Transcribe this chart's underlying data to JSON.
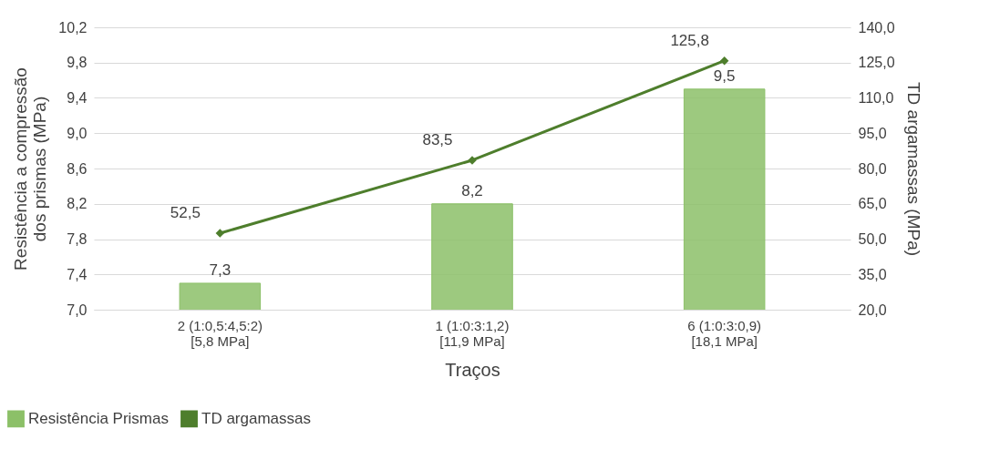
{
  "chart_data": {
    "type": "bar",
    "xlabel": "Traços",
    "ylabel": "Resistência a compressão dos prismas (MPa)",
    "y2label": "TD argamassas (MPa)",
    "categories": [
      "2  (1:0,5:4,5:2)\n[5,8 MPa]",
      "1  (1:0:3:1,2)\n[11,9 MPa]",
      "6  (1:0:3:0,9)\n[18,1 MPa]"
    ],
    "series": [
      {
        "name": "Resistência Prismas",
        "color": "#8cc068",
        "values": [
          7.3,
          8.2,
          9.5
        ],
        "value_labels": [
          "7,3",
          "8,2",
          "9,5"
        ]
      },
      {
        "name": "TD argamassas",
        "type": "line",
        "axis": "y2",
        "color": "#4e7e2c",
        "values": [
          52.5,
          83.5,
          125.8
        ],
        "value_labels": [
          "52,5",
          "83,5",
          "125,8"
        ]
      }
    ],
    "ylim": [
      7.0,
      10.2
    ],
    "yticks": [
      {
        "value": 7.0,
        "label": "7,0"
      },
      {
        "value": 7.4,
        "label": "7,4"
      },
      {
        "value": 7.8,
        "label": "7,8"
      },
      {
        "value": 8.2,
        "label": "8,2"
      },
      {
        "value": 8.6,
        "label": "8,6"
      },
      {
        "value": 9.0,
        "label": "9,0"
      },
      {
        "value": 9.4,
        "label": "9,4"
      },
      {
        "value": 9.8,
        "label": "9,8"
      },
      {
        "value": 10.2,
        "label": "10,2"
      }
    ],
    "y2lim": [
      20,
      140
    ],
    "y2ticks": [
      {
        "value": 20,
        "label": "20,0"
      },
      {
        "value": 35,
        "label": "35,0"
      },
      {
        "value": 50,
        "label": "50,0"
      },
      {
        "value": 65,
        "label": "65,0"
      },
      {
        "value": 80,
        "label": "80,0"
      },
      {
        "value": 95,
        "label": "95,0"
      },
      {
        "value": 110,
        "label": "110,0"
      },
      {
        "value": 125,
        "label": "125,0"
      },
      {
        "value": 140,
        "label": "140,0"
      }
    ],
    "grid": "y",
    "legend": "bottom left",
    "marker": "diamond",
    "line_style": "solid"
  }
}
